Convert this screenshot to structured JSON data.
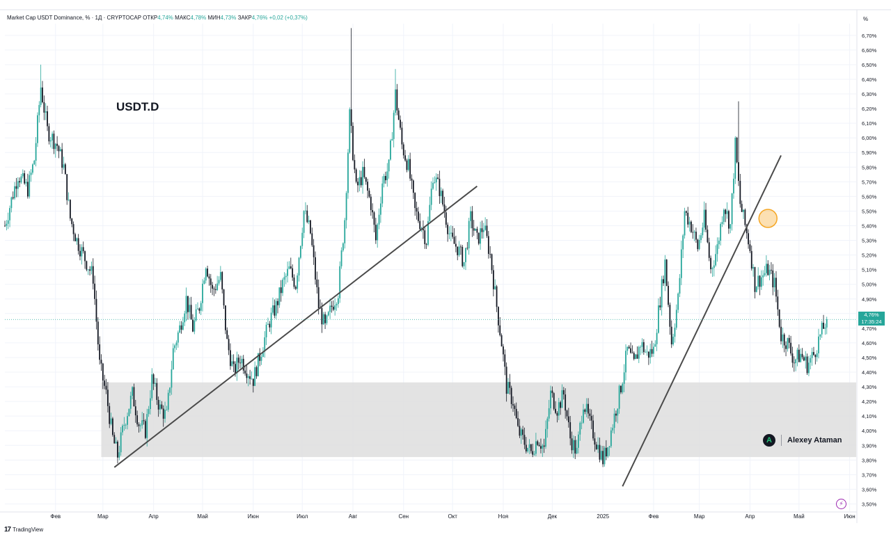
{
  "header": {
    "symbol": "Market Cap USDT Dominance, % · 1Д · CRYPTOCAP",
    "open_label": "ОТКР",
    "open_value": "4,74%",
    "high_label": "МАКС",
    "high_value": "4,78%",
    "low_label": "МИН",
    "low_value": "4,73%",
    "close_label": "ЗАКР",
    "close_value": "4,76%",
    "change_value": "+0,02 (+0,37%)"
  },
  "annotation_text": "USDT.D",
  "unit_label": "%",
  "last_price": {
    "value": "4,76%",
    "countdown": "17:35:24"
  },
  "author": {
    "name": "Alexey Ataman",
    "logo_letter": "A"
  },
  "brand": {
    "name": "TradingView",
    "mark": "17"
  },
  "bolt_icon": "⚡",
  "colors": {
    "up": "#26a69a",
    "down": "#131722",
    "zone": "#dedede",
    "highlight": "#f5a623"
  },
  "chart_data": {
    "type": "candlestick",
    "title": "Market Cap USDT Dominance, % · 1Д · CRYPTOCAP",
    "xlabel": "",
    "ylabel": "",
    "ylim": [
      3.45,
      6.78
    ],
    "y_ticks": [
      "6,70%",
      "6,60%",
      "6,50%",
      "6,40%",
      "6,30%",
      "6,20%",
      "6,10%",
      "6,00%",
      "5,90%",
      "5,80%",
      "5,70%",
      "5,60%",
      "5,50%",
      "5,40%",
      "5,30%",
      "5,20%",
      "5,10%",
      "5,00%",
      "4,90%",
      "4,80%",
      "4,70%",
      "4,60%",
      "4,50%",
      "4,40%",
      "4,30%",
      "4,20%",
      "4,10%",
      "4,00%",
      "3,90%",
      "3,80%",
      "3,70%",
      "3,60%",
      "3,50%"
    ],
    "y_tick_values": [
      6.7,
      6.6,
      6.5,
      6.4,
      6.3,
      6.2,
      6.1,
      6.0,
      5.9,
      5.8,
      5.7,
      5.6,
      5.5,
      5.4,
      5.3,
      5.2,
      5.1,
      5.0,
      4.9,
      4.8,
      4.7,
      4.6,
      4.5,
      4.4,
      4.3,
      4.2,
      4.1,
      4.0,
      3.9,
      3.8,
      3.7,
      3.6,
      3.5
    ],
    "x_ticks": [
      {
        "label": "Фев",
        "day": 31
      },
      {
        "label": "Мар",
        "day": 60
      },
      {
        "label": "Апр",
        "day": 91
      },
      {
        "label": "Май",
        "day": 121
      },
      {
        "label": "Июн",
        "day": 152
      },
      {
        "label": "Июл",
        "day": 182
      },
      {
        "label": "Авг",
        "day": 213
      },
      {
        "label": "Сен",
        "day": 244
      },
      {
        "label": "Окт",
        "day": 274
      },
      {
        "label": "Ноя",
        "day": 305
      },
      {
        "label": "Дек",
        "day": 335
      },
      {
        "label": "2025",
        "day": 366
      },
      {
        "label": "Фев",
        "day": 397
      },
      {
        "label": "Мар",
        "day": 425
      },
      {
        "label": "Апр",
        "day": 456
      },
      {
        "label": "Май",
        "day": 486
      },
      {
        "label": "Июн",
        "day": 517
      }
    ],
    "day_range": [
      0,
      521
    ],
    "close_path": [
      [
        0,
        5.4
      ],
      [
        8,
        5.75
      ],
      [
        14,
        5.65
      ],
      [
        18,
        5.85
      ],
      [
        22,
        6.35
      ],
      [
        26,
        6.05
      ],
      [
        32,
        5.95
      ],
      [
        36,
        5.8
      ],
      [
        40,
        5.45
      ],
      [
        44,
        5.3
      ],
      [
        50,
        5.15
      ],
      [
        54,
        5.05
      ],
      [
        56,
        4.75
      ],
      [
        58,
        4.45
      ],
      [
        62,
        4.25
      ],
      [
        66,
        3.95
      ],
      [
        69,
        3.83
      ],
      [
        73,
        4.05
      ],
      [
        78,
        4.25
      ],
      [
        82,
        4.05
      ],
      [
        86,
        4.0
      ],
      [
        90,
        4.35
      ],
      [
        95,
        4.15
      ],
      [
        99,
        4.1
      ],
      [
        103,
        4.55
      ],
      [
        107,
        4.7
      ],
      [
        111,
        4.9
      ],
      [
        115,
        4.7
      ],
      [
        119,
        4.85
      ],
      [
        123,
        5.15
      ],
      [
        127,
        4.95
      ],
      [
        132,
        5.05
      ],
      [
        136,
        4.6
      ],
      [
        140,
        4.4
      ],
      [
        144,
        4.5
      ],
      [
        148,
        4.42
      ],
      [
        152,
        4.35
      ],
      [
        157,
        4.55
      ],
      [
        162,
        4.75
      ],
      [
        166,
        4.85
      ],
      [
        170,
        5.0
      ],
      [
        174,
        5.1
      ],
      [
        178,
        5.0
      ],
      [
        183,
        5.5
      ],
      [
        187,
        5.35
      ],
      [
        192,
        4.85
      ],
      [
        196,
        4.7
      ],
      [
        200,
        4.85
      ],
      [
        204,
        4.95
      ],
      [
        208,
        5.45
      ],
      [
        211,
        6.15
      ],
      [
        215,
        5.65
      ],
      [
        219,
        5.75
      ],
      [
        224,
        5.55
      ],
      [
        227,
        5.3
      ],
      [
        231,
        5.7
      ],
      [
        235,
        5.8
      ],
      [
        239,
        6.3
      ],
      [
        243,
        5.95
      ],
      [
        247,
        5.8
      ],
      [
        251,
        5.5
      ],
      [
        255,
        5.4
      ],
      [
        258,
        5.3
      ],
      [
        262,
        5.75
      ],
      [
        266,
        5.65
      ],
      [
        270,
        5.45
      ],
      [
        273,
        5.3
      ],
      [
        277,
        5.25
      ],
      [
        281,
        5.15
      ],
      [
        285,
        5.45
      ],
      [
        289,
        5.3
      ],
      [
        293,
        5.4
      ],
      [
        297,
        5.2
      ],
      [
        301,
        4.85
      ],
      [
        304,
        4.6
      ],
      [
        307,
        4.3
      ],
      [
        311,
        4.2
      ],
      [
        314,
        4.0
      ],
      [
        318,
        3.92
      ],
      [
        322,
        3.85
      ],
      [
        326,
        3.95
      ],
      [
        330,
        3.88
      ],
      [
        334,
        4.25
      ],
      [
        338,
        4.15
      ],
      [
        342,
        4.25
      ],
      [
        346,
        3.95
      ],
      [
        350,
        3.85
      ],
      [
        354,
        4.2
      ],
      [
        358,
        4.05
      ],
      [
        362,
        3.92
      ],
      [
        366,
        3.8
      ],
      [
        369,
        3.9
      ],
      [
        373,
        4.1
      ],
      [
        377,
        4.3
      ],
      [
        381,
        4.55
      ],
      [
        385,
        4.45
      ],
      [
        389,
        4.6
      ],
      [
        393,
        4.52
      ],
      [
        397,
        4.55
      ],
      [
        401,
        4.9
      ],
      [
        404,
        5.15
      ],
      [
        408,
        4.6
      ],
      [
        412,
        4.9
      ],
      [
        416,
        5.5
      ],
      [
        420,
        5.4
      ],
      [
        424,
        5.25
      ],
      [
        428,
        5.45
      ],
      [
        432,
        5.1
      ],
      [
        436,
        5.25
      ],
      [
        440,
        5.55
      ],
      [
        444,
        5.4
      ],
      [
        447,
        5.95
      ],
      [
        450,
        5.55
      ],
      [
        453,
        5.4
      ],
      [
        456,
        5.25
      ],
      [
        459,
        5.0
      ],
      [
        463,
        5.05
      ],
      [
        467,
        5.1
      ],
      [
        471,
        5.0
      ],
      [
        475,
        4.65
      ],
      [
        479,
        4.6
      ],
      [
        483,
        4.48
      ],
      [
        487,
        4.52
      ],
      [
        491,
        4.45
      ],
      [
        495,
        4.52
      ],
      [
        499,
        4.65
      ],
      [
        503,
        4.76
      ]
    ],
    "spikes": [
      {
        "day": 22,
        "high": 6.5
      },
      {
        "day": 212,
        "high": 6.75
      },
      {
        "day": 239,
        "high": 6.47
      },
      {
        "day": 449,
        "high": 6.25
      }
    ],
    "support_zone": {
      "low": 3.82,
      "high": 4.33,
      "day_start": 59,
      "day_end": 521
    },
    "trendlines": [
      {
        "from": [
          67,
          3.75
        ],
        "to": [
          289,
          5.67
        ]
      },
      {
        "from": [
          378,
          3.62
        ],
        "to": [
          475,
          5.88
        ]
      }
    ],
    "highlight_marker": {
      "day": 467,
      "value": 5.45
    },
    "last_value": 4.76
  }
}
